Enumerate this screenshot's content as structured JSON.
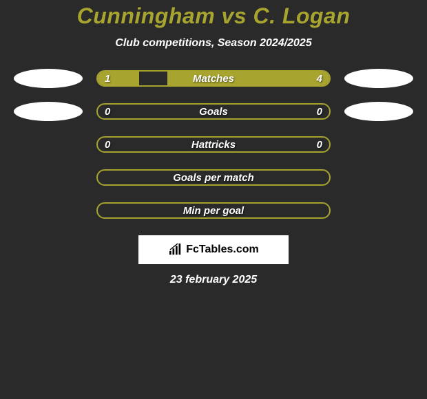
{
  "title": "Cunningham vs C. Logan",
  "subtitle": "Club competitions, Season 2024/2025",
  "colors": {
    "accent": "#a8a430",
    "background": "#2a2a2a",
    "text": "#ffffff",
    "ellipse": "#ffffff"
  },
  "rows": [
    {
      "label": "Matches",
      "left": "1",
      "right": "4",
      "left_pct": 18,
      "right_pct": 70,
      "show_ellipses": true
    },
    {
      "label": "Goals",
      "left": "0",
      "right": "0",
      "left_pct": 0,
      "right_pct": 0,
      "show_ellipses": true
    },
    {
      "label": "Hattricks",
      "left": "0",
      "right": "0",
      "left_pct": 0,
      "right_pct": 0,
      "show_ellipses": false
    },
    {
      "label": "Goals per match",
      "left": "",
      "right": "",
      "left_pct": 0,
      "right_pct": 0,
      "show_ellipses": false
    },
    {
      "label": "Min per goal",
      "left": "",
      "right": "",
      "left_pct": 0,
      "right_pct": 0,
      "show_ellipses": false
    }
  ],
  "footer": {
    "logo_text": "FcTables.com",
    "date": "23 february 2025"
  }
}
